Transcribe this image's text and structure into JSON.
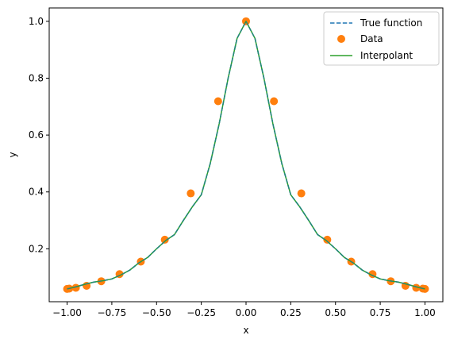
{
  "chart_data": {
    "type": "line",
    "title": "",
    "xlabel": "x",
    "ylabel": "y",
    "xlim": [
      -1.1,
      1.1
    ],
    "ylim": [
      0.014,
      1.047
    ],
    "x_ticks": [
      -1.0,
      -0.75,
      -0.5,
      -0.25,
      0.0,
      0.25,
      0.5,
      0.75,
      1.0
    ],
    "x_tick_labels": [
      "−1.00",
      "−0.75",
      "−0.50",
      "−0.25",
      "0.00",
      "0.25",
      "0.50",
      "0.75",
      "1.00"
    ],
    "y_ticks": [
      0.2,
      0.4,
      0.6,
      0.8,
      1.0
    ],
    "y_tick_labels": [
      "0.2",
      "0.4",
      "0.6",
      "0.8",
      "1.0"
    ],
    "grid": false,
    "legend_position": "top-right",
    "series": [
      {
        "name": "True function",
        "kind": "line",
        "style": "dashed",
        "color": "#1f77b4",
        "x": [
          -1.0,
          -0.95,
          -0.9,
          -0.85,
          -0.8,
          -0.75,
          -0.7,
          -0.65,
          -0.6,
          -0.55,
          -0.5,
          -0.45,
          -0.4,
          -0.35,
          -0.3,
          -0.25,
          -0.2,
          -0.15,
          -0.1,
          -0.05,
          0.0,
          0.05,
          0.1,
          0.15,
          0.2,
          0.25,
          0.3,
          0.35,
          0.4,
          0.45,
          0.5,
          0.55,
          0.6,
          0.65,
          0.7,
          0.75,
          0.8,
          0.85,
          0.9,
          0.95,
          1.0
        ],
        "y": [
          0.0588,
          0.0664,
          0.0755,
          0.083,
          0.0877,
          0.0941,
          0.1081,
          0.125,
          0.15,
          0.1695,
          0.2,
          0.2285,
          0.25,
          0.3,
          0.3478,
          0.39,
          0.5,
          0.64,
          0.8,
          0.94,
          1.0,
          0.94,
          0.8,
          0.64,
          0.5,
          0.39,
          0.3478,
          0.3,
          0.25,
          0.2285,
          0.2,
          0.1695,
          0.15,
          0.125,
          0.1081,
          0.0941,
          0.0877,
          0.083,
          0.0755,
          0.0664,
          0.0588
        ]
      },
      {
        "name": "Data",
        "kind": "scatter",
        "color": "#ff7f0e",
        "x": [
          -1.0,
          -0.988,
          -0.951,
          -0.891,
          -0.809,
          -0.707,
          -0.588,
          -0.454,
          -0.309,
          -0.156,
          0.0,
          0.156,
          0.309,
          0.454,
          0.588,
          0.707,
          0.809,
          0.891,
          0.951,
          0.988,
          1.0
        ],
        "y": [
          0.059,
          0.06,
          0.063,
          0.07,
          0.086,
          0.111,
          0.155,
          0.232,
          0.395,
          0.719,
          1.0,
          0.719,
          0.395,
          0.232,
          0.155,
          0.111,
          0.086,
          0.07,
          0.063,
          0.06,
          0.059
        ]
      },
      {
        "name": "Interpolant",
        "kind": "line",
        "style": "solid",
        "color": "#2ca02c",
        "x": [
          -1.0,
          -0.95,
          -0.9,
          -0.85,
          -0.8,
          -0.75,
          -0.7,
          -0.65,
          -0.6,
          -0.55,
          -0.5,
          -0.45,
          -0.4,
          -0.35,
          -0.3,
          -0.25,
          -0.2,
          -0.15,
          -0.1,
          -0.05,
          0.0,
          0.05,
          0.1,
          0.15,
          0.2,
          0.25,
          0.3,
          0.35,
          0.4,
          0.45,
          0.5,
          0.55,
          0.6,
          0.65,
          0.7,
          0.75,
          0.8,
          0.85,
          0.9,
          0.95,
          1.0
        ],
        "y": [
          0.0588,
          0.0664,
          0.0755,
          0.083,
          0.0877,
          0.0941,
          0.1081,
          0.125,
          0.15,
          0.1695,
          0.2,
          0.2285,
          0.25,
          0.3,
          0.3478,
          0.39,
          0.5,
          0.64,
          0.8,
          0.94,
          1.0,
          0.94,
          0.8,
          0.64,
          0.5,
          0.39,
          0.3478,
          0.3,
          0.25,
          0.2285,
          0.2,
          0.1695,
          0.15,
          0.125,
          0.1081,
          0.0941,
          0.0877,
          0.083,
          0.0755,
          0.0664,
          0.0588
        ]
      }
    ]
  }
}
